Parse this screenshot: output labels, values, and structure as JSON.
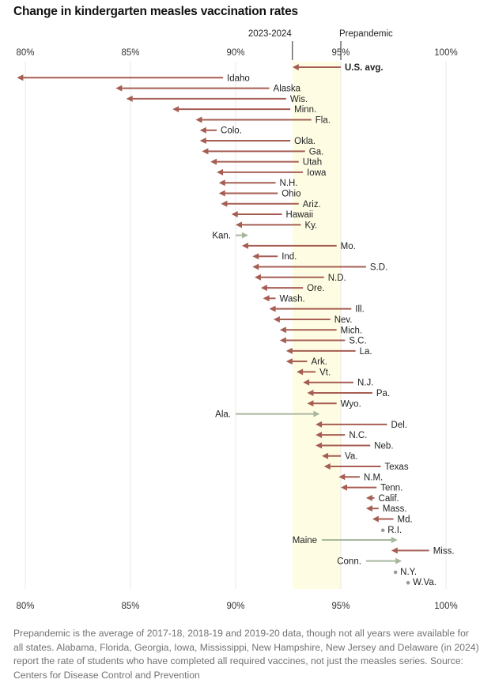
{
  "chart_data": {
    "type": "arrow-dot",
    "title": "Change in kindergarten measles vaccination rates",
    "xlabel": "",
    "ylabel": "",
    "xlim": [
      80,
      100
    ],
    "ticks": [
      80,
      85,
      90,
      95,
      100
    ],
    "tick_labels": [
      "80%",
      "85%",
      "90%",
      "95%",
      "100%"
    ],
    "grid": true,
    "reference_markers": {
      "current_label": "2023-2024",
      "prepandemic_label": "Prepandemic",
      "current_value": 92.7,
      "prepandemic_value": 95.0
    },
    "series_fields": [
      "prepandemic",
      "2023-2024"
    ],
    "colors": {
      "decrease": "#a65e53",
      "increase": "#a7b79c",
      "no_change": "#9a9a9a",
      "band": "#fefde4",
      "grid": "#e8e8e8"
    },
    "rows": [
      {
        "label": "U.S. avg.",
        "from": 95.0,
        "to": 92.7,
        "bold": true
      },
      {
        "label": "Idaho",
        "from": 89.4,
        "to": 79.6
      },
      {
        "label": "Alaska",
        "from": 91.6,
        "to": 84.3
      },
      {
        "label": "Wis.",
        "from": 92.4,
        "to": 84.8
      },
      {
        "label": "Minn.",
        "from": 92.6,
        "to": 87.0
      },
      {
        "label": "Fla.",
        "from": 93.6,
        "to": 88.1
      },
      {
        "label": "Colo.",
        "from": 89.1,
        "to": 88.3
      },
      {
        "label": "Okla.",
        "from": 92.6,
        "to": 88.3
      },
      {
        "label": "Ga.",
        "from": 93.3,
        "to": 88.4
      },
      {
        "label": "Utah",
        "from": 93.0,
        "to": 88.8
      },
      {
        "label": "Iowa",
        "from": 93.2,
        "to": 89.1
      },
      {
        "label": "N.H.",
        "from": 91.9,
        "to": 89.2
      },
      {
        "label": "Ohio",
        "from": 92.0,
        "to": 89.2
      },
      {
        "label": "Ariz.",
        "from": 93.0,
        "to": 89.3
      },
      {
        "label": "Hawaii",
        "from": 92.2,
        "to": 89.8
      },
      {
        "label": "Ky.",
        "from": 93.1,
        "to": 90.0
      },
      {
        "label": "Kan.",
        "from": 90.0,
        "to": 90.6
      },
      {
        "label": "Mo.",
        "from": 94.8,
        "to": 90.3
      },
      {
        "label": "Ind.",
        "from": 92.0,
        "to": 90.8
      },
      {
        "label": "S.D.",
        "from": 96.2,
        "to": 90.8
      },
      {
        "label": "N.D.",
        "from": 94.2,
        "to": 90.9
      },
      {
        "label": "Ore.",
        "from": 93.2,
        "to": 91.2
      },
      {
        "label": "Wash.",
        "from": 91.9,
        "to": 91.3
      },
      {
        "label": "Ill.",
        "from": 95.5,
        "to": 91.6
      },
      {
        "label": "Nev.",
        "from": 94.5,
        "to": 91.8
      },
      {
        "label": "Mich.",
        "from": 94.8,
        "to": 92.1
      },
      {
        "label": "S.C.",
        "from": 95.2,
        "to": 92.1
      },
      {
        "label": "La.",
        "from": 95.7,
        "to": 92.4
      },
      {
        "label": "Ark.",
        "from": 93.4,
        "to": 92.4
      },
      {
        "label": "Vt.",
        "from": 93.8,
        "to": 92.9
      },
      {
        "label": "N.J.",
        "from": 95.6,
        "to": 93.2
      },
      {
        "label": "Pa.",
        "from": 96.5,
        "to": 93.4
      },
      {
        "label": "Wyo.",
        "from": 94.8,
        "to": 93.4
      },
      {
        "label": "Ala.",
        "from": 90.0,
        "to": 94.0
      },
      {
        "label": "Del.",
        "from": 97.2,
        "to": 93.8
      },
      {
        "label": "N.C.",
        "from": 95.2,
        "to": 93.8
      },
      {
        "label": "Neb.",
        "from": 96.4,
        "to": 93.8
      },
      {
        "label": "Va.",
        "from": 95.0,
        "to": 94.1
      },
      {
        "label": "Texas",
        "from": 96.9,
        "to": 94.2
      },
      {
        "label": "N.M.",
        "from": 95.9,
        "to": 94.9
      },
      {
        "label": "Tenn.",
        "from": 96.7,
        "to": 95.0
      },
      {
        "label": "Calif.",
        "from": 96.6,
        "to": 96.2
      },
      {
        "label": "Mass.",
        "from": 96.8,
        "to": 96.2
      },
      {
        "label": "Md.",
        "from": 97.5,
        "to": 96.5
      },
      {
        "label": "R.I.",
        "from": 97.0,
        "to": 97.0
      },
      {
        "label": "Maine",
        "from": 94.1,
        "to": 97.7
      },
      {
        "label": "Miss.",
        "from": 99.2,
        "to": 97.4
      },
      {
        "label": "Conn.",
        "from": 96.2,
        "to": 97.9
      },
      {
        "label": "N.Y.",
        "from": 97.6,
        "to": 97.6
      },
      {
        "label": "W.Va.",
        "from": 98.2,
        "to": 98.2
      }
    ],
    "note": "Prepandemic is the average of 2017-18, 2018-19 and 2019-20 data, though not all years were available for all states. Alabama, Florida, Georgia, Iowa, Mississippi, New Hampshire, New Jersey and Delaware (in 2024) report the rate of students who have completed all required vaccines, not just the measles series. Source: Centers for Disease Control and Prevention"
  }
}
